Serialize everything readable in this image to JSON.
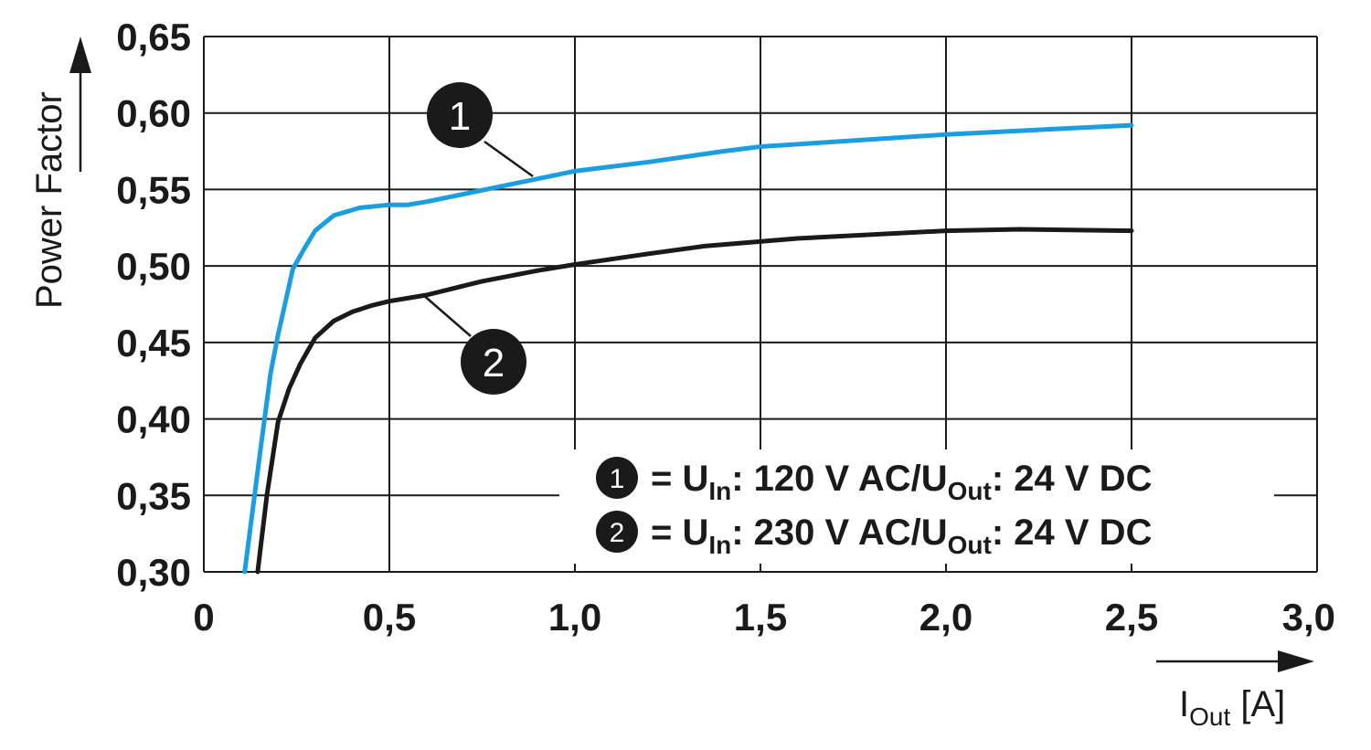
{
  "chart_data": {
    "type": "line",
    "ylabel": "Power Factor",
    "xlabel_main": "I",
    "xlabel_sub": "Out",
    "xlabel_unit": " [A]",
    "xlim": [
      0,
      3.0
    ],
    "ylim": [
      0.3,
      0.65
    ],
    "x_ticks": [
      0,
      0.5,
      1.0,
      1.5,
      2.0,
      2.5,
      3.0
    ],
    "x_tick_labels": [
      "0",
      "0,5",
      "1,0",
      "1,5",
      "2,0",
      "2,5",
      "3,0"
    ],
    "y_ticks": [
      0.3,
      0.35,
      0.4,
      0.45,
      0.5,
      0.55,
      0.6,
      0.65
    ],
    "y_tick_labels": [
      "0,30",
      "0,35",
      "0,40",
      "0,45",
      "0,50",
      "0,55",
      "0,60",
      "0,65"
    ],
    "grid": true,
    "legend_placement": "bottom-right",
    "series": [
      {
        "marker": "1",
        "color": "#1a9ee0",
        "legend_prefix": "= U",
        "legend_sub1": "In",
        "legend_mid": ": 120 V AC/U",
        "legend_sub2": "Out",
        "legend_suffix": ": 24 V DC",
        "x": [
          0.11,
          0.15,
          0.18,
          0.2,
          0.24,
          0.27,
          0.3,
          0.35,
          0.42,
          0.5,
          0.55,
          0.6,
          0.7,
          0.8,
          0.9,
          1.0,
          1.2,
          1.4,
          1.5,
          1.75,
          2.0,
          2.25,
          2.5
        ],
        "y": [
          0.3,
          0.375,
          0.43,
          0.455,
          0.498,
          0.511,
          0.523,
          0.533,
          0.538,
          0.54,
          0.54,
          0.542,
          0.547,
          0.552,
          0.557,
          0.562,
          0.568,
          0.575,
          0.578,
          0.582,
          0.586,
          0.589,
          0.592
        ]
      },
      {
        "marker": "2",
        "color": "#1a1a1a",
        "legend_prefix": "= U",
        "legend_sub1": "In",
        "legend_mid": ": 230 V AC/U",
        "legend_sub2": "Out",
        "legend_suffix": ": 24 V DC",
        "x": [
          0.145,
          0.17,
          0.2,
          0.23,
          0.26,
          0.3,
          0.35,
          0.4,
          0.45,
          0.5,
          0.6,
          0.75,
          0.9,
          1.0,
          1.2,
          1.35,
          1.6,
          2.0,
          2.2,
          2.5
        ],
        "y": [
          0.3,
          0.35,
          0.398,
          0.42,
          0.436,
          0.453,
          0.464,
          0.47,
          0.474,
          0.477,
          0.481,
          0.49,
          0.497,
          0.501,
          0.508,
          0.513,
          0.518,
          0.523,
          0.524,
          0.523
        ]
      }
    ]
  }
}
